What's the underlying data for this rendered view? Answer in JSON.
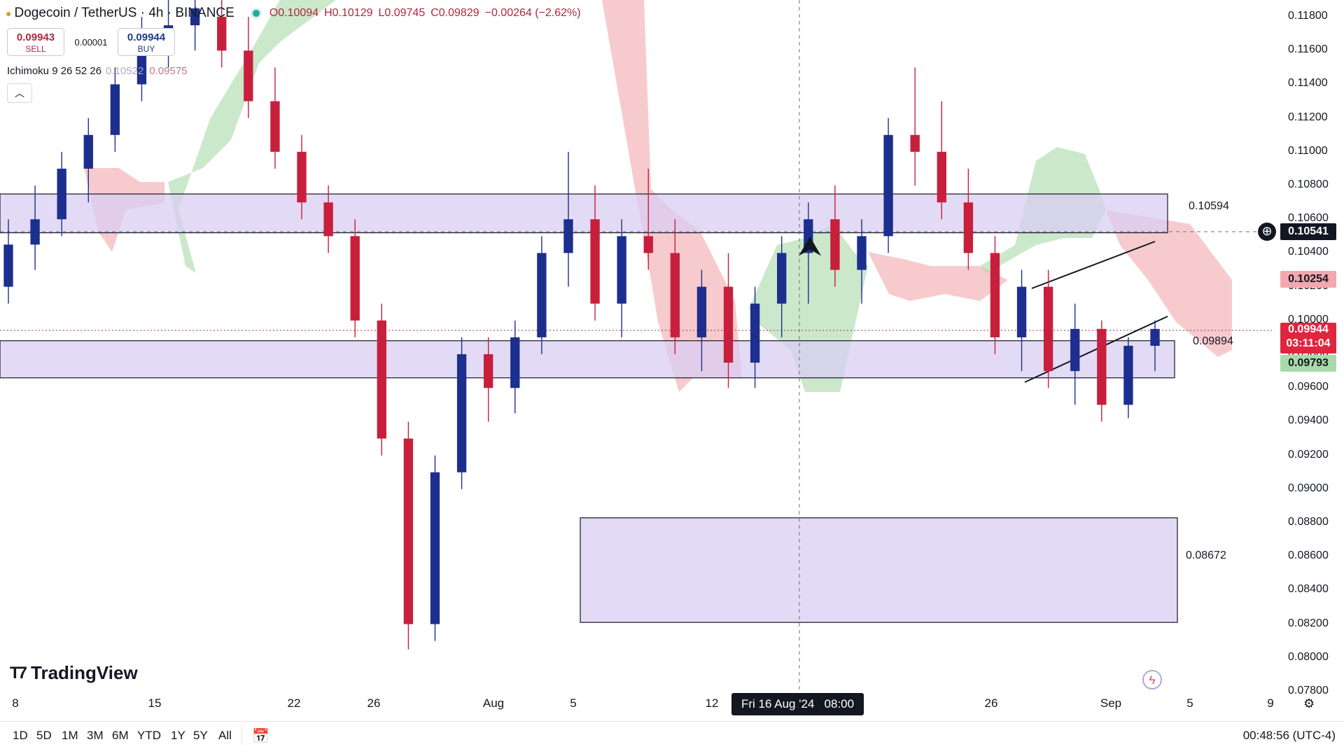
{
  "header": {
    "symbol": "Dogecoin / TetherUS · 4h · BINANCE",
    "open": "O0.10094",
    "high": "H0.10129",
    "low": "L0.09745",
    "close": "C0.09829",
    "change": "−0.00264 (−2.62%)"
  },
  "trade": {
    "sell_price": "0.09943",
    "sell_label": "SELL",
    "spread": "0.00001",
    "buy_price": "0.09944",
    "buy_label": "BUY"
  },
  "indicator": {
    "name": "Ichimoku 9 26 52 26",
    "value_a": "0.10522",
    "value_b": "0.09575"
  },
  "y_axis": {
    "ticks": [
      "0.11800",
      "0.11600",
      "0.11400",
      "0.11200",
      "0.11000",
      "0.10800",
      "0.10600",
      "0.10400",
      "0.10200",
      "0.10000",
      "0.09800",
      "0.09600",
      "0.09400",
      "0.09200",
      "0.09000",
      "0.08800",
      "0.08600",
      "0.08400",
      "0.08200",
      "0.08000",
      "0.07800"
    ],
    "tags": {
      "crosshair_price": "0.10541",
      "cloud_a": "0.10254",
      "last_price": "0.09944",
      "countdown": "03:11:04",
      "cloud_b": "0.09793"
    }
  },
  "zones": {
    "upper": "0.10594",
    "middle": "0.09894",
    "lower": "0.08672"
  },
  "x_axis": {
    "ticks": [
      "8",
      "15",
      "22",
      "26",
      "Aug",
      "5",
      "12",
      "26",
      "Sep",
      "5",
      "9"
    ],
    "crosshair_date": "Fri 16 Aug '24",
    "crosshair_time": "08:00"
  },
  "branding": {
    "name": "TradingView"
  },
  "ranges": [
    "1D",
    "5D",
    "1M",
    "3M",
    "6M",
    "YTD",
    "1Y",
    "5Y",
    "All"
  ],
  "clock": "00:48:56 (UTC-4)",
  "colors": {
    "bull": "#1c2f8f",
    "bear": "#c71f3c",
    "zone": "#d9cdf2",
    "cloud_green": "#a8d9a8",
    "cloud_red": "#f2a8ae"
  },
  "chart_data": {
    "type": "candlestick",
    "symbol": "DOGE/USDT",
    "ylim": [
      0.0775,
      0.119
    ],
    "zones": [
      [
        0.1052,
        0.1075
      ],
      [
        0.0966,
        0.0988
      ],
      [
        0.0821,
        0.0883
      ]
    ],
    "candles_ohlc": [
      [
        0.102,
        0.106,
        0.101,
        0.1045
      ],
      [
        0.1045,
        0.108,
        0.103,
        0.106
      ],
      [
        0.106,
        0.11,
        0.105,
        0.109
      ],
      [
        0.109,
        0.112,
        0.107,
        0.111
      ],
      [
        0.111,
        0.115,
        0.11,
        0.114
      ],
      [
        0.114,
        0.118,
        0.113,
        0.117
      ],
      [
        0.117,
        0.119,
        0.115,
        0.1175
      ],
      [
        0.1175,
        0.119,
        0.116,
        0.1185
      ],
      [
        0.118,
        0.119,
        0.115,
        0.116
      ],
      [
        0.116,
        0.118,
        0.112,
        0.113
      ],
      [
        0.113,
        0.115,
        0.109,
        0.11
      ],
      [
        0.11,
        0.111,
        0.106,
        0.107
      ],
      [
        0.107,
        0.108,
        0.104,
        0.105
      ],
      [
        0.105,
        0.106,
        0.099,
        0.1
      ],
      [
        0.1,
        0.101,
        0.092,
        0.093
      ],
      [
        0.093,
        0.094,
        0.0805,
        0.082
      ],
      [
        0.082,
        0.092,
        0.081,
        0.091
      ],
      [
        0.091,
        0.099,
        0.09,
        0.098
      ],
      [
        0.098,
        0.099,
        0.094,
        0.096
      ],
      [
        0.096,
        0.1,
        0.0945,
        0.099
      ],
      [
        0.099,
        0.105,
        0.098,
        0.104
      ],
      [
        0.104,
        0.11,
        0.102,
        0.106
      ],
      [
        0.106,
        0.108,
        0.1,
        0.101
      ],
      [
        0.101,
        0.106,
        0.099,
        0.105
      ],
      [
        0.105,
        0.109,
        0.103,
        0.104
      ],
      [
        0.104,
        0.106,
        0.098,
        0.099
      ],
      [
        0.099,
        0.103,
        0.097,
        0.102
      ],
      [
        0.102,
        0.104,
        0.096,
        0.0975
      ],
      [
        0.0975,
        0.102,
        0.096,
        0.101
      ],
      [
        0.101,
        0.105,
        0.099,
        0.104
      ],
      [
        0.104,
        0.107,
        0.101,
        0.106
      ],
      [
        0.106,
        0.108,
        0.102,
        0.103
      ],
      [
        0.103,
        0.106,
        0.101,
        0.105
      ],
      [
        0.105,
        0.112,
        0.104,
        0.111
      ],
      [
        0.111,
        0.115,
        0.108,
        0.11
      ],
      [
        0.11,
        0.113,
        0.106,
        0.107
      ],
      [
        0.107,
        0.109,
        0.103,
        0.104
      ],
      [
        0.104,
        0.105,
        0.098,
        0.099
      ],
      [
        0.099,
        0.103,
        0.097,
        0.102
      ],
      [
        0.102,
        0.103,
        0.096,
        0.097
      ],
      [
        0.097,
        0.101,
        0.095,
        0.0995
      ],
      [
        0.0995,
        0.1,
        0.094,
        0.095
      ],
      [
        0.095,
        0.099,
        0.0942,
        0.0985
      ],
      [
        0.0985,
        0.1,
        0.097,
        0.0995
      ]
    ]
  }
}
